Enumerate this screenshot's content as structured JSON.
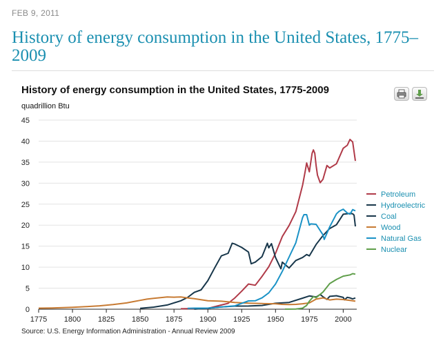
{
  "header": {
    "date": "FEB 9, 2011",
    "headline": "History of energy consumption in the United States, 1775–2009"
  },
  "toolbar": {
    "print_icon": "printer-icon",
    "download_icon": "download-icon"
  },
  "chart_data": {
    "type": "line",
    "title": "History of energy consumption in the United States, 1775-2009",
    "ylabel": "quadrillion Btu",
    "xlabel": "",
    "xlim": [
      1775,
      2010
    ],
    "ylim": [
      0,
      45
    ],
    "x_ticks": [
      1775,
      1800,
      1825,
      1850,
      1875,
      1900,
      1925,
      1950,
      1975,
      2000
    ],
    "y_ticks": [
      0,
      5,
      10,
      15,
      20,
      25,
      30,
      35,
      40,
      45
    ],
    "grid": "horizontal",
    "legend_position": "right",
    "source": "Source:  U.S. Energy Information Administration  -  Annual Review 2009",
    "series": [
      {
        "name": "Petroleum",
        "color": "#b03a48",
        "x": [
          1880,
          1900,
          1910,
          1915,
          1920,
          1925,
          1930,
          1935,
          1940,
          1945,
          1950,
          1955,
          1960,
          1965,
          1970,
          1972,
          1973,
          1975,
          1977,
          1978,
          1979,
          1980,
          1981,
          1983,
          1985,
          1988,
          1990,
          1995,
          2000,
          2003,
          2005,
          2007,
          2009
        ],
        "y": [
          0.1,
          0.2,
          1.0,
          1.4,
          2.7,
          4.3,
          6.0,
          5.7,
          7.8,
          10.1,
          13.3,
          17.3,
          19.9,
          23.2,
          29.5,
          33.0,
          34.8,
          32.7,
          37.1,
          37.9,
          37.1,
          34.2,
          31.9,
          30.1,
          30.9,
          34.2,
          33.6,
          34.6,
          38.3,
          39.0,
          40.4,
          39.8,
          35.3
        ]
      },
      {
        "name": "Hydroelectric",
        "color": "#17364a",
        "x": [
          1890,
          1900,
          1910,
          1920,
          1930,
          1940,
          1950,
          1960,
          1970,
          1975,
          1980,
          1983,
          1985,
          1988,
          1990,
          1995,
          2000,
          2001,
          2003,
          2005,
          2007,
          2009
        ],
        "y": [
          0.02,
          0.25,
          0.54,
          0.74,
          0.75,
          0.88,
          1.42,
          1.61,
          2.63,
          3.15,
          2.9,
          3.5,
          2.97,
          2.33,
          3.05,
          3.2,
          2.81,
          2.24,
          2.83,
          2.7,
          2.45,
          2.68
        ]
      },
      {
        "name": "Coal",
        "color": "#17364a",
        "x": [
          1850,
          1860,
          1870,
          1880,
          1885,
          1890,
          1895,
          1900,
          1905,
          1910,
          1915,
          1918,
          1920,
          1925,
          1930,
          1932,
          1935,
          1940,
          1944,
          1945,
          1947,
          1950,
          1954,
          1955,
          1960,
          1965,
          1970,
          1973,
          1975,
          1980,
          1985,
          1990,
          1995,
          2000,
          2005,
          2007,
          2008,
          2009
        ],
        "y": [
          0.2,
          0.5,
          1.0,
          2.0,
          2.8,
          4.0,
          4.6,
          6.8,
          9.8,
          12.7,
          13.3,
          15.7,
          15.5,
          14.7,
          13.6,
          10.8,
          11.2,
          12.5,
          15.7,
          14.6,
          15.6,
          12.3,
          9.6,
          11.2,
          9.8,
          11.6,
          12.3,
          13.0,
          12.7,
          15.4,
          17.5,
          19.2,
          20.1,
          22.6,
          22.8,
          22.7,
          22.4,
          19.7
        ]
      },
      {
        "name": "Wood",
        "color": "#c77a32",
        "x": [
          1775,
          1785,
          1800,
          1810,
          1820,
          1830,
          1840,
          1845,
          1850,
          1855,
          1860,
          1865,
          1870,
          1875,
          1880,
          1885,
          1890,
          1900,
          1910,
          1920,
          1930,
          1940,
          1950,
          1955,
          1960,
          1965,
          1970,
          1975,
          1980,
          1985,
          1990,
          1995,
          2000,
          2005,
          2009
        ],
        "y": [
          0.25,
          0.3,
          0.45,
          0.6,
          0.8,
          1.1,
          1.5,
          1.8,
          2.1,
          2.4,
          2.6,
          2.75,
          2.9,
          2.85,
          2.9,
          2.7,
          2.5,
          2.0,
          1.9,
          1.6,
          1.45,
          1.35,
          1.3,
          1.15,
          1.1,
          1.15,
          1.3,
          1.5,
          2.4,
          2.7,
          2.2,
          2.4,
          2.3,
          2.1,
          1.9
        ]
      },
      {
        "name": "Natural Gas",
        "color": "#1a92c6",
        "x": [
          1885,
          1890,
          1900,
          1910,
          1920,
          1930,
          1935,
          1940,
          1945,
          1950,
          1955,
          1960,
          1965,
          1970,
          1971,
          1973,
          1975,
          1976,
          1980,
          1985,
          1986,
          1990,
          1995,
          1997,
          2000,
          2003,
          2005,
          2007,
          2009
        ],
        "y": [
          0.2,
          0.25,
          0.25,
          0.54,
          0.81,
          1.97,
          2.0,
          2.7,
          3.9,
          6.0,
          9.0,
          12.4,
          15.8,
          21.8,
          22.5,
          22.5,
          20.0,
          20.3,
          20.2,
          17.7,
          16.6,
          19.6,
          22.7,
          23.3,
          23.8,
          22.9,
          22.6,
          23.7,
          23.4
        ]
      },
      {
        "name": "Nuclear",
        "color": "#5f9e4a",
        "x": [
          1957,
          1960,
          1965,
          1970,
          1973,
          1975,
          1978,
          1980,
          1985,
          1990,
          1995,
          2000,
          2005,
          2007,
          2009
        ],
        "y": [
          0.01,
          0.01,
          0.04,
          0.24,
          0.91,
          1.9,
          3.0,
          2.74,
          4.08,
          6.1,
          7.08,
          7.86,
          8.16,
          8.46,
          8.35
        ]
      }
    ]
  }
}
